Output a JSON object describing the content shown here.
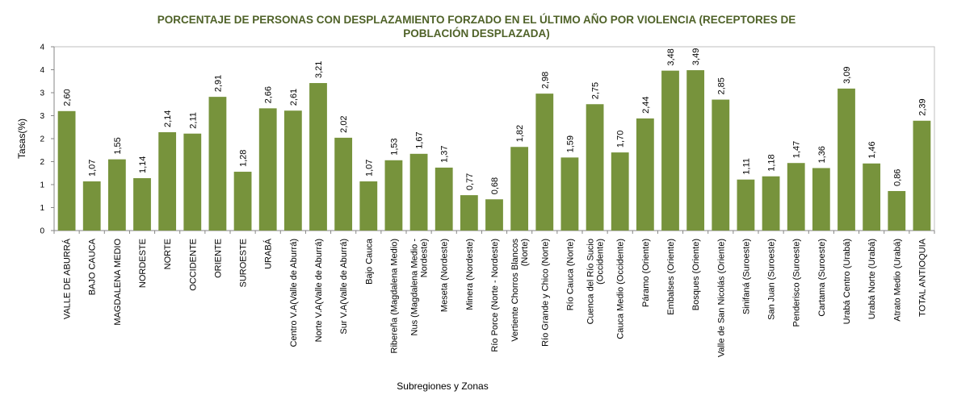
{
  "chart_data": {
    "type": "bar",
    "title": "PORCENTAJE DE PERSONAS CON DESPLAZAMIENTO FORZADO EN EL ÚLTIMO AÑO POR VIOLENCIA (RECEPTORES DE POBLACIÓN DESPLAZADA)",
    "xlabel": "Subregiones y Zonas",
    "ylabel": "Tasas(%)",
    "ylim": [
      0,
      4
    ],
    "y_tick_labels": [
      "0",
      "1",
      "1",
      "2",
      "2",
      "3",
      "3",
      "4",
      "4"
    ],
    "grid": false,
    "color": "#77933c",
    "categories": [
      [
        "VALLE DE ABURRÁ"
      ],
      [
        "BAJO CAUCA"
      ],
      [
        "MAGDALENA MEDIO"
      ],
      [
        "NORDESTE"
      ],
      [
        "NORTE"
      ],
      [
        "OCCIDENTE"
      ],
      [
        "ORIENTE"
      ],
      [
        "SUROESTE"
      ],
      [
        "URABÁ"
      ],
      [
        "Centro V.A(Valle de Aburrá)"
      ],
      [
        "Norte V.A(Valle de Aburrá)"
      ],
      [
        "Sur V.A(Valle de Aburrá)"
      ],
      [
        "Bajo Cauca"
      ],
      [
        "Ribereña  (Magdalena Medio)"
      ],
      [
        "Nus  (Magdalena Medio -",
        "Nordeste)"
      ],
      [
        "Meseta  (Nordeste)"
      ],
      [
        "Minera  (Nordeste)"
      ],
      [
        "Río Porce  (Norte - Nordeste)"
      ],
      [
        "Vertiente Chorros Blancos",
        "(Norte)"
      ],
      [
        "Río Grande y Chico  (Norte)"
      ],
      [
        "Río Cauca  (Norte)"
      ],
      [
        "Cuenca del Río Sucio",
        "(Occidente)"
      ],
      [
        "Cauca Medio  (Occidente)"
      ],
      [
        "Páramo  (Oriente)"
      ],
      [
        "Embalses  (Oriente)"
      ],
      [
        "Bosques  (Oriente)"
      ],
      [
        "Valle de San Nicolás  (Oriente)"
      ],
      [
        "Sinifaná  (Suroeste)"
      ],
      [
        "San Juan  (Suroeste)"
      ],
      [
        "Penderisco  (Suroeste)"
      ],
      [
        "Cartama  (Suroeste)"
      ],
      [
        "Urabá Centro  (Urabá)"
      ],
      [
        "Urabá Norte  (Urabá)"
      ],
      [
        "Atrato Medio  (Urabá)"
      ],
      [
        "TOTAL ANTIOQUIA"
      ]
    ],
    "values": [
      2.6,
      1.07,
      1.55,
      1.14,
      2.14,
      2.11,
      2.91,
      1.28,
      2.66,
      2.61,
      3.21,
      2.02,
      1.07,
      1.53,
      1.67,
      1.37,
      0.77,
      0.68,
      1.82,
      2.98,
      1.59,
      2.75,
      1.7,
      2.44,
      3.48,
      3.49,
      2.85,
      1.11,
      1.18,
      1.47,
      1.36,
      3.09,
      1.46,
      0.86,
      2.39
    ],
    "data_labels": [
      "2,60",
      "1,07",
      "1,55",
      "1,14",
      "2,14",
      "2,11",
      "2,91",
      "1,28",
      "2,66",
      "2,61",
      "3,21",
      "2,02",
      "1,07",
      "1,53",
      "1,67",
      "1,37",
      "0,77",
      "0,68",
      "1,82",
      "2,98",
      "1,59",
      "2,75",
      "1,70",
      "2,44",
      "3,48",
      "3,49",
      "2,85",
      "1,11",
      "1,18",
      "1,47",
      "1,36",
      "3,09",
      "1,46",
      "0,86",
      "2,39"
    ]
  }
}
